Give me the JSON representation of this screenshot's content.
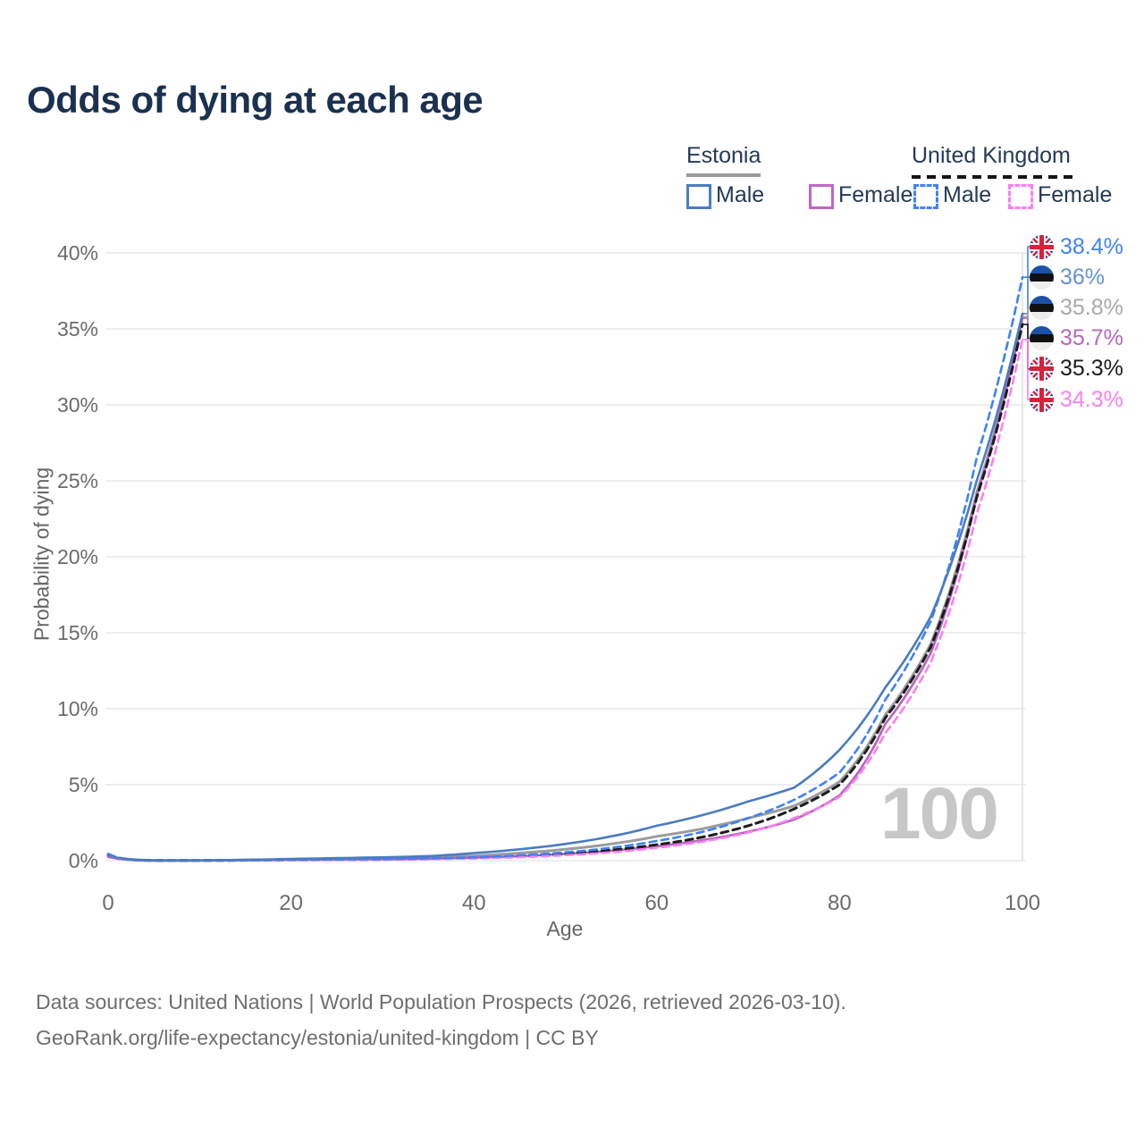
{
  "title": "Odds of dying at each age",
  "legend": {
    "estonia": {
      "name": "Estonia",
      "male": "Male",
      "female": "Female"
    },
    "uk": {
      "name": "United Kingdom",
      "male": "Male",
      "female": "Female"
    }
  },
  "colors": {
    "title": "#1a3150",
    "grid": "#e9e9e9",
    "age_marker_line": "#e3e3e3",
    "axis_text": "#6b6b6b",
    "watermark": "#c7c7c7",
    "estonia_underline": "#9a9a9a",
    "uk_underline": "#141414"
  },
  "chart_data": {
    "type": "line",
    "title": "Odds of dying at each age",
    "xlabel": "Age",
    "ylabel": "Probability of dying",
    "xlim": [
      0,
      100
    ],
    "ylim": [
      0,
      40
    ],
    "x_ticks": [
      0,
      20,
      40,
      60,
      80,
      100
    ],
    "y_ticks": [
      0,
      5,
      10,
      15,
      20,
      25,
      30,
      35,
      40
    ],
    "y_tick_suffix": "%",
    "grid": "horizontal",
    "legend_position": "top-right",
    "age_marker": 100,
    "watermark": "100",
    "x": [
      0,
      5,
      10,
      15,
      20,
      25,
      30,
      35,
      40,
      45,
      50,
      55,
      60,
      65,
      70,
      75,
      80,
      85,
      90,
      95,
      100
    ],
    "series": [
      {
        "name": "Estonia Male",
        "group": "Estonia",
        "sex": "Male",
        "style": "solid",
        "color": "#4a7cc0",
        "flag": "estonia",
        "end_label": "36%",
        "end_label_color": "#6591d6",
        "values": [
          0.35,
          0.02,
          0.02,
          0.06,
          0.12,
          0.17,
          0.22,
          0.3,
          0.5,
          0.75,
          1.1,
          1.6,
          2.3,
          3.0,
          3.9,
          4.8,
          7.3,
          11.4,
          16.1,
          25.0,
          36.0
        ]
      },
      {
        "name": "Estonia Female",
        "group": "Estonia",
        "sex": "Female",
        "style": "solid",
        "color": "#b564bd",
        "flag": "estonia",
        "end_label": "35.7%",
        "end_label_color": "#b767be",
        "values": [
          0.25,
          0.01,
          0.01,
          0.03,
          0.05,
          0.07,
          0.09,
          0.13,
          0.2,
          0.3,
          0.45,
          0.65,
          0.95,
          1.35,
          1.9,
          2.7,
          4.3,
          9.0,
          13.7,
          24.0,
          35.7
        ]
      },
      {
        "name": "Estonia Both sexes",
        "group": "Estonia",
        "sex": "All",
        "style": "solid",
        "color": "#9b9b9b",
        "flag": "estonia",
        "end_label": "35.8%",
        "end_label_color": "#a9a9a9",
        "values": [
          0.3,
          0.02,
          0.02,
          0.04,
          0.08,
          0.11,
          0.15,
          0.2,
          0.32,
          0.5,
          0.75,
          1.1,
          1.6,
          2.1,
          2.8,
          3.6,
          5.2,
          9.6,
          14.3,
          24.2,
          35.8
        ]
      },
      {
        "name": "United Kingdom Male",
        "group": "United Kingdom",
        "sex": "Male",
        "style": "dashed",
        "color": "#3f82f7",
        "flag": "uk",
        "end_label": "38.4%",
        "end_label_color": "#3f82f7",
        "values": [
          0.45,
          0.01,
          0.01,
          0.03,
          0.06,
          0.08,
          0.1,
          0.15,
          0.22,
          0.35,
          0.55,
          0.85,
          1.3,
          1.9,
          2.8,
          4.0,
          5.8,
          10.6,
          15.8,
          26.5,
          38.4
        ]
      },
      {
        "name": "United Kingdom Female",
        "group": "United Kingdom",
        "sex": "Female",
        "style": "dashed",
        "color": "#fb7ef2",
        "flag": "uk",
        "end_label": "34.3%",
        "end_label_color": "#fc7ff0",
        "values": [
          0.35,
          0.01,
          0.01,
          0.02,
          0.03,
          0.05,
          0.07,
          0.1,
          0.15,
          0.23,
          0.36,
          0.55,
          0.85,
          1.25,
          1.85,
          2.8,
          4.2,
          8.4,
          13.1,
          22.8,
          34.3
        ]
      },
      {
        "name": "United Kingdom Both sexes",
        "group": "United Kingdom",
        "sex": "All",
        "style": "dashed",
        "color": "#1c1c1c",
        "flag": "uk",
        "end_label": "35.3%",
        "end_label_color": "#1c1c1c",
        "values": [
          0.4,
          0.01,
          0.01,
          0.025,
          0.05,
          0.065,
          0.085,
          0.12,
          0.18,
          0.28,
          0.45,
          0.7,
          1.05,
          1.55,
          2.3,
          3.4,
          5.0,
          9.4,
          14.1,
          23.9,
          35.3
        ]
      }
    ]
  },
  "footer": {
    "line1": "Data sources: United Nations | World Population Prospects (2026, retrieved 2026-03-10).",
    "line2": "GeoRank.org/life-expectancy/estonia/united-kingdom | CC BY"
  }
}
